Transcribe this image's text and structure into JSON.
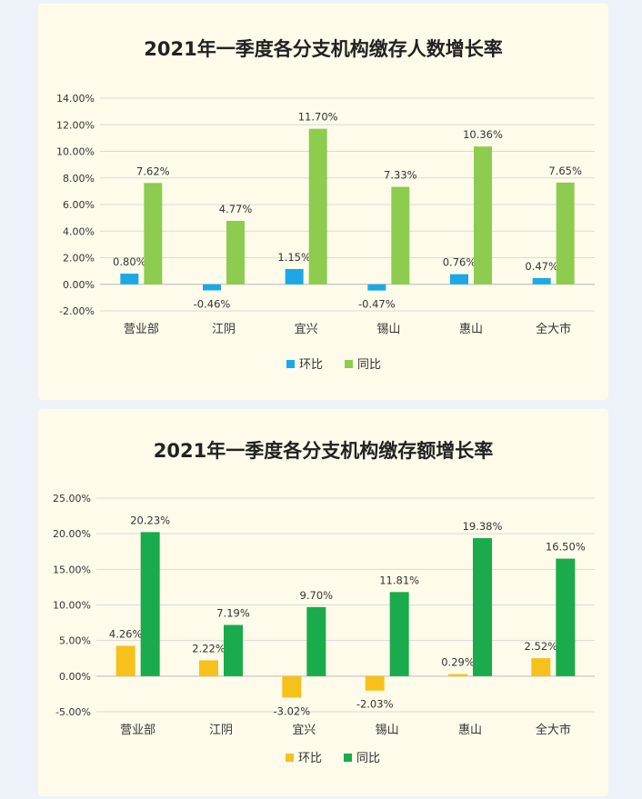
{
  "chart_data": [
    {
      "type": "bar",
      "title": "2021年一季度各分支机构缴存人数增长率",
      "categories": [
        "营业部",
        "江阴",
        "宜兴",
        "锡山",
        "惠山",
        "全大市"
      ],
      "series": [
        {
          "name": "环比",
          "color": "#1aa9e6",
          "values": [
            0.8,
            -0.46,
            1.15,
            -0.47,
            0.76,
            0.47
          ],
          "labels": [
            "0.80%",
            "-0.46%",
            "1.15%",
            "-0.47%",
            "0.76%",
            "0.47%"
          ]
        },
        {
          "name": "同比",
          "color": "#8dcc4e",
          "values": [
            7.62,
            4.77,
            11.7,
            7.33,
            10.36,
            7.65
          ],
          "labels": [
            "7.62%",
            "4.77%",
            "11.70%",
            "7.33%",
            "10.36%",
            "7.65%"
          ]
        }
      ],
      "ylim": [
        -2,
        14
      ],
      "yticks": [
        -2,
        0,
        2,
        4,
        6,
        8,
        10,
        12,
        14
      ],
      "ytick_labels": [
        "-2.00%",
        "0.00%",
        "2.00%",
        "4.00%",
        "6.00%",
        "8.00%",
        "10.00%",
        "12.00%",
        "14.00%"
      ],
      "grid": true,
      "legend": "bottom"
    },
    {
      "type": "bar",
      "title": "2021年一季度各分支机构缴存额增长率",
      "categories": [
        "营业部",
        "江阴",
        "宜兴",
        "锡山",
        "惠山",
        "全大市"
      ],
      "series": [
        {
          "name": "环比",
          "color": "#f7c11c",
          "values": [
            4.26,
            2.22,
            -3.02,
            -2.03,
            0.29,
            2.52
          ],
          "labels": [
            "4.26%",
            "2.22%",
            "-3.02%",
            "-2.03%",
            "0.29%",
            "2.52%"
          ]
        },
        {
          "name": "同比",
          "color": "#1aab4c",
          "values": [
            20.23,
            7.19,
            9.7,
            11.81,
            19.38,
            16.5
          ],
          "labels": [
            "20.23%",
            "7.19%",
            "9.70%",
            "11.81%",
            "19.38%",
            "16.50%"
          ]
        }
      ],
      "ylim": [
        -5,
        25
      ],
      "yticks": [
        -5,
        0,
        5,
        10,
        15,
        20,
        25
      ],
      "ytick_labels": [
        "-5.00%",
        "0.00%",
        "5.00%",
        "10.00%",
        "15.00%",
        "20.00%",
        "25.00%"
      ],
      "grid": true,
      "legend": "bottom"
    }
  ]
}
